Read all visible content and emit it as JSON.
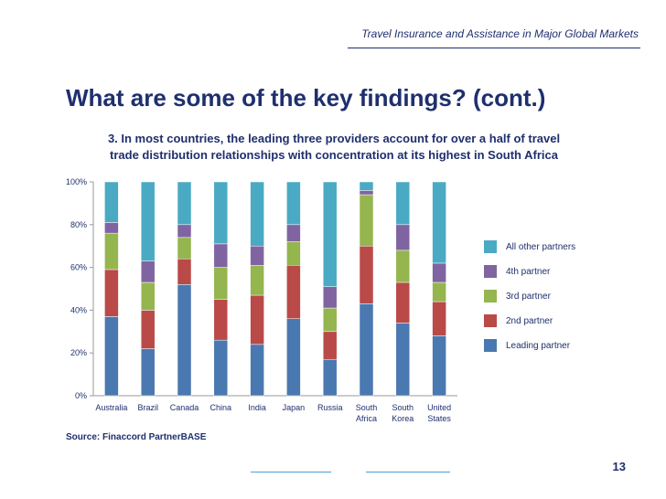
{
  "header": {
    "doc_title": "Travel Insurance and Assistance in Major Global Markets"
  },
  "slide": {
    "title": "What are some of the key findings? (cont.)",
    "subtitle_line1": "3. In most countries, the leading three providers account for over a half of travel",
    "subtitle_line2": "trade distribution relationships with concentration at its highest in South Africa",
    "source": "Source: Finaccord PartnerBASE",
    "page_number": "13"
  },
  "colors": {
    "leading": "#4a78b0",
    "second": "#b94a48",
    "third": "#95b54f",
    "fourth": "#8064a2",
    "other": "#4aaac4",
    "text": "#1f2f6e"
  },
  "chart_data": {
    "type": "bar",
    "stacked": true,
    "title": "",
    "xlabel": "",
    "ylabel": "",
    "ylim": [
      0,
      100
    ],
    "y_ticks": [
      "0%",
      "20%",
      "40%",
      "60%",
      "80%",
      "100%"
    ],
    "categories": [
      [
        "Australia"
      ],
      [
        "Brazil"
      ],
      [
        "Canada"
      ],
      [
        "China"
      ],
      [
        "India"
      ],
      [
        "Japan"
      ],
      [
        "Russia"
      ],
      [
        "South",
        "Africa"
      ],
      [
        "South",
        "Korea"
      ],
      [
        "United",
        "States"
      ]
    ],
    "legend_position": "right",
    "legend_order": [
      "All other partners",
      "4th partner",
      "3rd partner",
      "2nd partner",
      "Leading partner"
    ],
    "series": [
      {
        "name": "Leading partner",
        "color_key": "leading",
        "values": [
          37,
          22,
          52,
          26,
          24,
          36,
          17,
          43,
          34,
          28
        ]
      },
      {
        "name": "2nd partner",
        "color_key": "second",
        "values": [
          22,
          18,
          12,
          19,
          23,
          25,
          13,
          27,
          19,
          16
        ]
      },
      {
        "name": "3rd partner",
        "color_key": "third",
        "values": [
          17,
          13,
          10,
          15,
          14,
          11,
          11,
          24,
          15,
          9
        ]
      },
      {
        "name": "4th partner",
        "color_key": "fourth",
        "values": [
          5,
          10,
          6,
          11,
          9,
          8,
          10,
          2,
          12,
          9
        ]
      },
      {
        "name": "All other partners",
        "color_key": "other",
        "values": [
          19,
          37,
          20,
          29,
          30,
          20,
          49,
          4,
          20,
          38
        ]
      }
    ]
  }
}
